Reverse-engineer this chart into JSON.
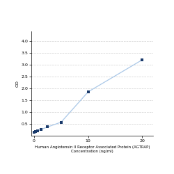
{
  "x": [
    0,
    0.312,
    0.625,
    1.25,
    2.5,
    5,
    10,
    20
  ],
  "y": [
    0.15,
    0.18,
    0.21,
    0.26,
    0.37,
    0.57,
    1.85,
    3.2
  ],
  "line_color": "#aac8e8",
  "marker_color": "#1a3a6b",
  "marker_style": "s",
  "marker_size": 3,
  "xlabel_line1": "Human Angiotensin II Receptor Associated Protein (AGTRAP)",
  "xlabel_line2": "Concentration (ng/ml)",
  "ylabel": "OD",
  "xlim": [
    -0.5,
    22
  ],
  "ylim": [
    0,
    4.4
  ],
  "yticks": [
    0.5,
    1.0,
    1.5,
    2.0,
    2.5,
    3.0,
    3.5,
    4.0
  ],
  "xticks": [
    0,
    10,
    20
  ],
  "grid_color": "#d0d0d0",
  "background_color": "#ffffff",
  "font_size": 4.5,
  "label_font_size": 4.0
}
